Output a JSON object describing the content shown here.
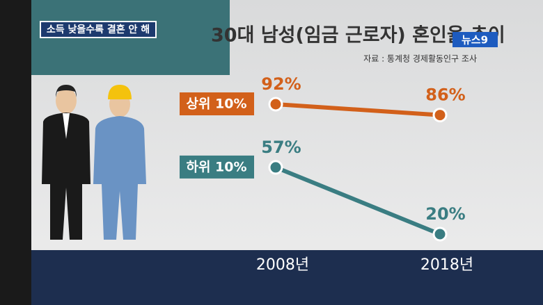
{
  "chart_data": {
    "type": "line",
    "tag": "소득 낮을수록 결혼 안 해",
    "title": "30대 남성(임금 근로자) 혼인율 추이",
    "source": "자료 : 통계청 경제활동인구 조사",
    "logo": "뉴스9",
    "categories": [
      "2008년",
      "2018년"
    ],
    "series": [
      {
        "name": "상위 10%",
        "color": "#d2601a",
        "values": [
          92,
          86
        ],
        "value_labels": [
          "92%",
          "86%"
        ]
      },
      {
        "name": "하위 10%",
        "color": "#3a7d82",
        "values": [
          57,
          20
        ],
        "value_labels": [
          "57%",
          "20%"
        ]
      }
    ]
  }
}
